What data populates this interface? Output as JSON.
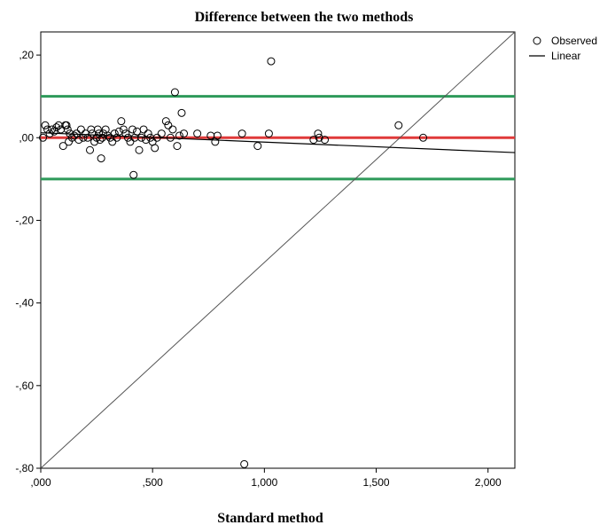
{
  "chart_data": {
    "type": "scatter",
    "title": "Difference between the two methods",
    "xlabel": "Standard method",
    "ylabel": "",
    "xlim": [
      0,
      2.12
    ],
    "ylim": [
      -0.8,
      0.256
    ],
    "x_ticks": [
      {
        "value": 0.0,
        "label": ",000"
      },
      {
        "value": 0.5,
        "label": ",500"
      },
      {
        "value": 1.0,
        "label": "1,000"
      },
      {
        "value": 1.5,
        "label": "1,500"
      },
      {
        "value": 2.0,
        "label": "2,000"
      }
    ],
    "y_ticks": [
      {
        "value": 0.2,
        "label": ",20"
      },
      {
        "value": 0.0,
        "label": ",00"
      },
      {
        "value": -0.2,
        "label": "-,20"
      },
      {
        "value": -0.4,
        "label": "-,40"
      },
      {
        "value": -0.6,
        "label": "-,60"
      },
      {
        "value": -0.8,
        "label": "-,80"
      }
    ],
    "grid": false,
    "legend_position": "top-right",
    "legend": [
      {
        "name": "Observed",
        "symbol": "open-circle"
      },
      {
        "name": "Linear",
        "symbol": "line"
      }
    ],
    "series": [
      {
        "name": "Observed",
        "kind": "points",
        "points": [
          [
            0.01,
            0.0
          ],
          [
            0.02,
            0.03
          ],
          [
            0.03,
            0.02
          ],
          [
            0.04,
            0.01
          ],
          [
            0.05,
            0.02
          ],
          [
            0.06,
            0.015
          ],
          [
            0.07,
            0.025
          ],
          [
            0.08,
            0.03
          ],
          [
            0.09,
            0.02
          ],
          [
            0.1,
            -0.02
          ],
          [
            0.11,
            0.03
          ],
          [
            0.115,
            0.03
          ],
          [
            0.12,
            0.02
          ],
          [
            0.125,
            -0.01
          ],
          [
            0.13,
            0.01
          ],
          [
            0.14,
            0.0
          ],
          [
            0.15,
            0.005
          ],
          [
            0.16,
            0.01
          ],
          [
            0.17,
            -0.005
          ],
          [
            0.18,
            0.02
          ],
          [
            0.19,
            0.0
          ],
          [
            0.2,
            0.01
          ],
          [
            0.21,
            0.0
          ],
          [
            0.22,
            -0.03
          ],
          [
            0.225,
            0.02
          ],
          [
            0.23,
            0.01
          ],
          [
            0.24,
            -0.01
          ],
          [
            0.25,
            0.0
          ],
          [
            0.255,
            0.02
          ],
          [
            0.26,
            0.01
          ],
          [
            0.265,
            -0.005
          ],
          [
            0.27,
            -0.05
          ],
          [
            0.275,
            0.0
          ],
          [
            0.28,
            0.01
          ],
          [
            0.29,
            0.02
          ],
          [
            0.3,
            0.005
          ],
          [
            0.31,
            0.0
          ],
          [
            0.32,
            -0.01
          ],
          [
            0.33,
            0.01
          ],
          [
            0.34,
            0.0
          ],
          [
            0.35,
            0.015
          ],
          [
            0.36,
            0.04
          ],
          [
            0.37,
            0.02
          ],
          [
            0.38,
            0.01
          ],
          [
            0.39,
            0.0
          ],
          [
            0.4,
            -0.01
          ],
          [
            0.41,
            0.02
          ],
          [
            0.415,
            -0.09
          ],
          [
            0.42,
            0.0
          ],
          [
            0.43,
            0.015
          ],
          [
            0.44,
            -0.03
          ],
          [
            0.45,
            0.0
          ],
          [
            0.46,
            0.02
          ],
          [
            0.47,
            -0.005
          ],
          [
            0.48,
            0.01
          ],
          [
            0.49,
            0.0
          ],
          [
            0.5,
            -0.01
          ],
          [
            0.51,
            -0.025
          ],
          [
            0.52,
            0.0
          ],
          [
            0.54,
            0.01
          ],
          [
            0.56,
            0.04
          ],
          [
            0.57,
            0.03
          ],
          [
            0.58,
            0.0
          ],
          [
            0.59,
            0.02
          ],
          [
            0.6,
            0.11
          ],
          [
            0.61,
            -0.02
          ],
          [
            0.62,
            0.005
          ],
          [
            0.63,
            0.06
          ],
          [
            0.64,
            0.01
          ],
          [
            0.7,
            0.01
          ],
          [
            0.76,
            0.005
          ],
          [
            0.78,
            -0.01
          ],
          [
            0.79,
            0.005
          ],
          [
            0.9,
            0.01
          ],
          [
            0.91,
            -0.79
          ],
          [
            0.97,
            -0.02
          ],
          [
            1.02,
            0.01
          ],
          [
            1.03,
            0.185
          ],
          [
            1.22,
            -0.005
          ],
          [
            1.24,
            0.01
          ],
          [
            1.245,
            0.0
          ],
          [
            1.27,
            -0.005
          ],
          [
            1.6,
            0.03
          ],
          [
            1.71,
            0.0
          ]
        ]
      },
      {
        "name": "Linear",
        "kind": "line",
        "points": [
          [
            0.0,
            0.012
          ],
          [
            2.12,
            -0.036
          ]
        ]
      }
    ],
    "reference_lines": [
      {
        "kind": "horizontal",
        "y": 0.1,
        "color": "#2e9a5a"
      },
      {
        "kind": "horizontal",
        "y": -0.1,
        "color": "#2e9a5a"
      },
      {
        "kind": "horizontal",
        "y": 0.0,
        "color": "#e03a3a"
      },
      {
        "kind": "diagonal",
        "from": [
          0.0,
          -0.8
        ],
        "to": [
          2.12,
          0.256
        ],
        "color": "#555555"
      }
    ],
    "colors": {
      "upper_limit": "#2e9a5a",
      "lower_limit": "#2e9a5a",
      "zero_line": "#e03a3a",
      "diagonal": "#555555",
      "regression": "#000000",
      "points": "#000000"
    }
  }
}
